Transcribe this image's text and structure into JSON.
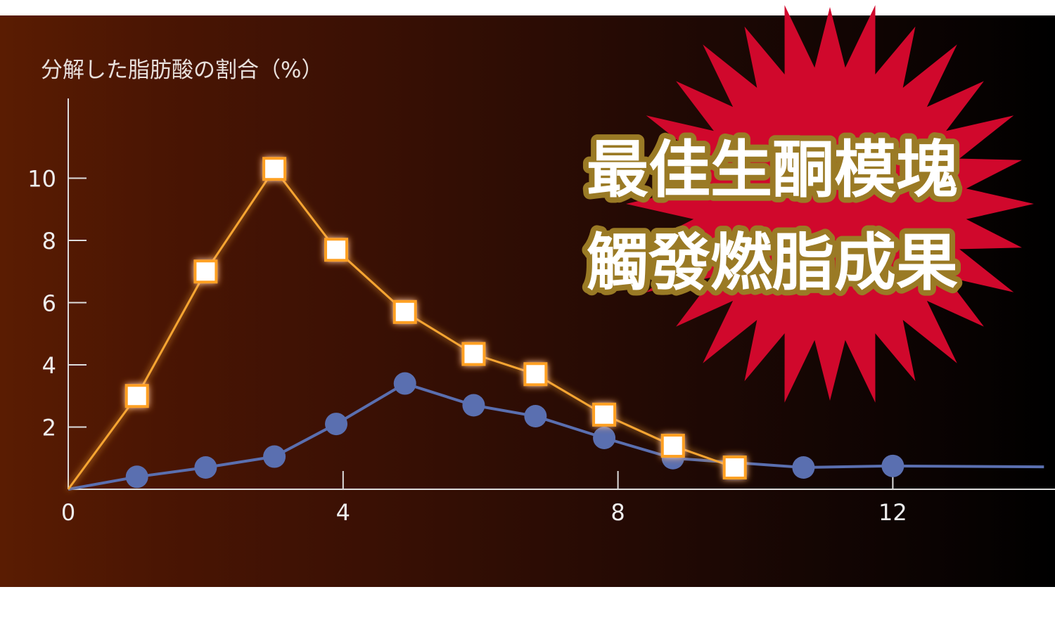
{
  "chart_data": {
    "type": "line",
    "ylabel": "分解した脂肪酸の割合（%）",
    "xlabel": "",
    "xlim": [
      0,
      14.2
    ],
    "ylim": [
      0,
      12
    ],
    "xticks": [
      0,
      4,
      8,
      12
    ],
    "xtick_labels": [
      "0",
      "4",
      "8",
      "12"
    ],
    "yticks": [
      2,
      4,
      6,
      8,
      10
    ],
    "ytick_labels": [
      "2",
      "4",
      "6",
      "8",
      "10"
    ],
    "grid": false,
    "series": [
      {
        "marker": "square",
        "color": "#f7a531",
        "x": [
          0,
          1,
          2,
          3,
          3.9,
          4.9,
          5.9,
          6.8,
          7.8,
          8.8,
          9.7
        ],
        "y": [
          0,
          3.0,
          7.0,
          10.3,
          7.7,
          5.7,
          4.35,
          3.7,
          2.4,
          1.4,
          0.7
        ]
      },
      {
        "marker": "circle",
        "color": "#5a6fb0",
        "x": [
          0,
          1,
          2,
          3,
          3.9,
          4.9,
          5.9,
          6.8,
          7.8,
          8.8,
          10.7,
          12,
          14.2
        ],
        "y": [
          0,
          0.4,
          0.7,
          1.05,
          2.1,
          3.4,
          2.7,
          2.35,
          1.65,
          1.0,
          0.7,
          0.75,
          0.72
        ],
        "marker_count": 12
      }
    ]
  },
  "banner": {
    "line1": "最佳生酮模塊",
    "line2": "觸發燃脂成果",
    "burst_color": "#d0082c",
    "text_color": "#ffffff",
    "outline_color": "#9a7a25"
  }
}
